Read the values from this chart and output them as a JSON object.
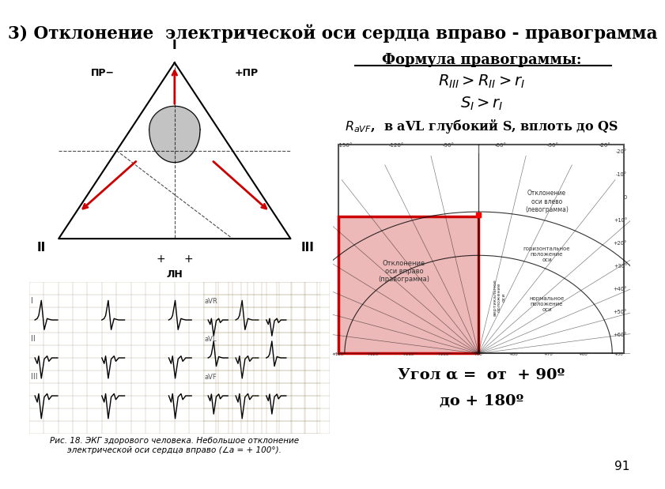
{
  "title": "3) Отклонение  электрической оси сердца вправо - правограмма",
  "bg_color": "#ffffff",
  "formula_title": "Формула правограммы:",
  "angle_text_line1": "Угол α =  от  + 90º",
  "angle_text_line2": "до + 180º",
  "page_number": "91",
  "arrow_color": "#cc0000",
  "dial_pink_color": "#e8a0a0",
  "dial_border_color": "#cc0000",
  "tri_bg": "#f5edd8",
  "ecg_bg": "#c8b89a",
  "dial_bg": "#e8dcc8",
  "ecg_grid_color": "#a09070"
}
